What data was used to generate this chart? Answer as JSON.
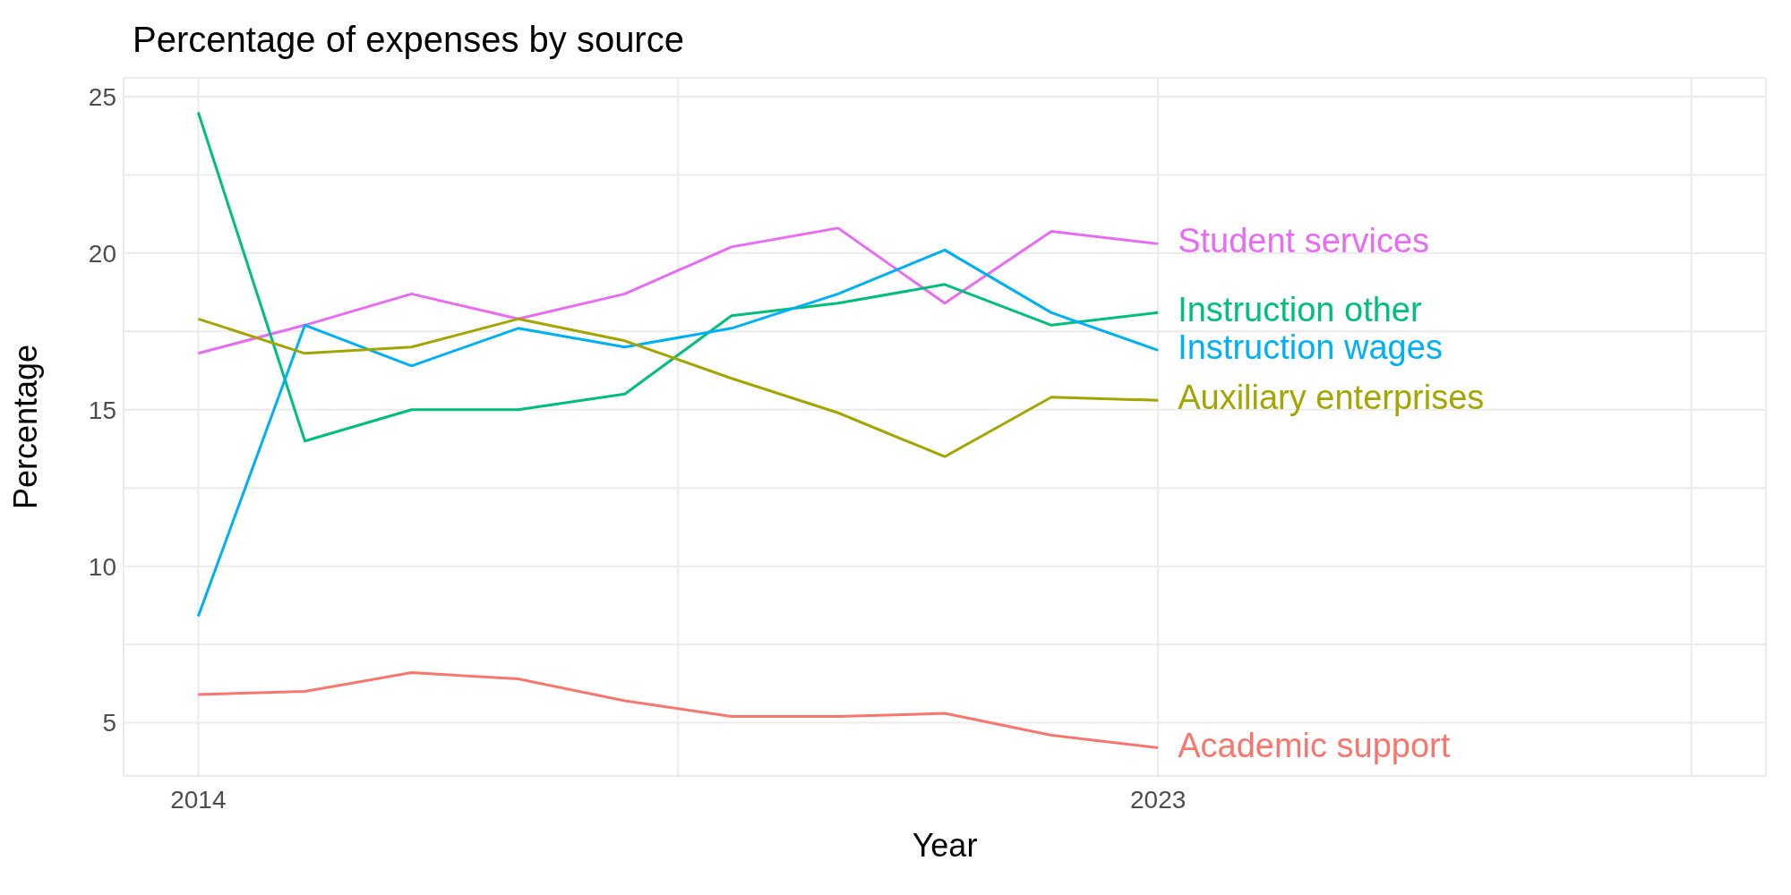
{
  "chart_data": {
    "type": "line",
    "title": "Percentage of expenses by source",
    "xlabel": "Year",
    "ylabel": "Percentage",
    "x": [
      2014,
      2015,
      2016,
      2017,
      2018,
      2019,
      2020,
      2021,
      2022,
      2023
    ],
    "xlim": [
      2013.3,
      2028.7
    ],
    "xticks": [
      2014,
      {
        "value": 2018.5,
        "label": null
      },
      2023,
      {
        "value": 2028,
        "label": null
      }
    ],
    "ylim": [
      3.3,
      25.6
    ],
    "yticks": [
      5,
      {
        "value": 7.5,
        "label": null
      },
      10,
      {
        "value": 12.5,
        "label": null
      },
      15,
      {
        "value": 17.5,
        "label": null
      },
      20,
      {
        "value": 22.5,
        "label": null
      },
      25
    ],
    "grid": true,
    "series": [
      {
        "name": "Student services",
        "color": "#e76bf3",
        "values": [
          16.8,
          17.7,
          18.7,
          17.9,
          18.7,
          20.2,
          20.8,
          18.4,
          20.7,
          20.3
        ]
      },
      {
        "name": "Instruction other",
        "color": "#00bf7d",
        "values": [
          24.5,
          14.0,
          15.0,
          15.0,
          15.5,
          18.0,
          18.4,
          19.0,
          17.7,
          18.1
        ]
      },
      {
        "name": "Instruction wages",
        "color": "#00b0f6",
        "values": [
          8.4,
          17.7,
          16.4,
          17.6,
          17.0,
          17.6,
          18.7,
          20.1,
          18.1,
          16.9
        ]
      },
      {
        "name": "Auxiliary enterprises",
        "color": "#a3a500",
        "values": [
          17.9,
          16.8,
          17.0,
          17.9,
          17.2,
          16.0,
          14.9,
          13.5,
          15.4,
          15.3
        ]
      },
      {
        "name": "Academic support",
        "color": "#f8766d",
        "values": [
          5.9,
          6.0,
          6.6,
          6.4,
          5.7,
          5.2,
          5.2,
          5.3,
          4.6,
          4.2
        ]
      }
    ]
  }
}
